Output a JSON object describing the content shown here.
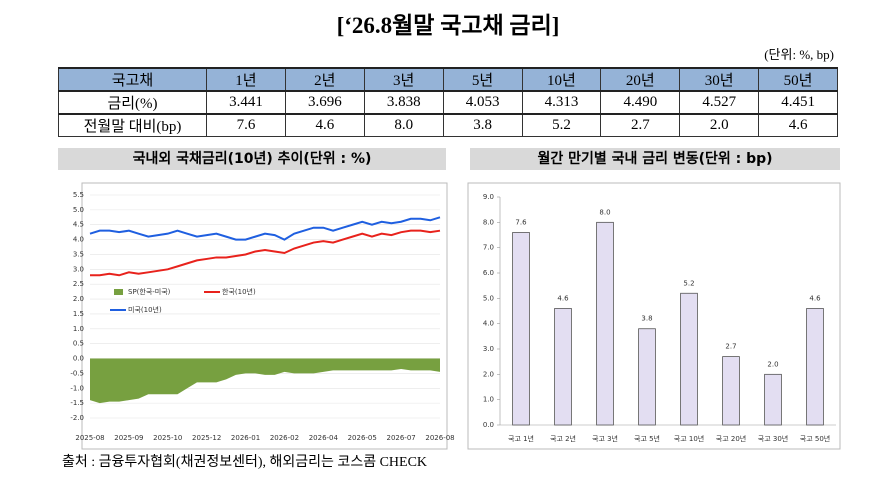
{
  "title": "[‘26.8월말 국고채 금리]",
  "unit": "(단위: %, bp)",
  "table": {
    "header": [
      "국고채",
      "1년",
      "2년",
      "3년",
      "5년",
      "10년",
      "20년",
      "30년",
      "50년"
    ],
    "rows": [
      [
        "금리(%)",
        "3.441",
        "3.696",
        "3.838",
        "4.053",
        "4.313",
        "4.490",
        "4.527",
        "4.451"
      ],
      [
        "전월말 대비(bp)",
        "7.6",
        "4.6",
        "8.0",
        "3.8",
        "5.2",
        "2.7",
        "2.0",
        "4.6"
      ]
    ]
  },
  "chart_data": [
    {
      "type": "line",
      "title": "국내외 국채금리(10년) 추이(단위 : %)",
      "categories": [
        "2025-08",
        null,
        null,
        null,
        "2025-09",
        null,
        null,
        null,
        "2025-10",
        null,
        null,
        null,
        "2025-12",
        null,
        null,
        null,
        "2026-01",
        null,
        null,
        null,
        "2026-02",
        null,
        null,
        null,
        "2026-04",
        null,
        null,
        null,
        "2026-05",
        null,
        null,
        null,
        "2026-07",
        null,
        null,
        null,
        "2026-08"
      ],
      "series": [
        {
          "name": "SP(한국-미국)",
          "color": "#77a040",
          "kind": "area",
          "values": [
            -1.4,
            -1.5,
            -1.45,
            -1.45,
            -1.4,
            -1.35,
            -1.2,
            -1.2,
            -1.2,
            -1.2,
            -1.0,
            -0.8,
            -0.8,
            -0.8,
            -0.7,
            -0.55,
            -0.5,
            -0.5,
            -0.55,
            -0.55,
            -0.45,
            -0.5,
            -0.5,
            -0.5,
            -0.45,
            -0.4,
            -0.4,
            -0.4,
            -0.4,
            -0.4,
            -0.4,
            -0.4,
            -0.35,
            -0.4,
            -0.4,
            -0.4,
            -0.45
          ]
        },
        {
          "name": "한국(10년)",
          "color": "#e8221c",
          "kind": "line",
          "values": [
            2.8,
            2.8,
            2.85,
            2.8,
            2.9,
            2.85,
            2.9,
            2.95,
            3.0,
            3.1,
            3.2,
            3.3,
            3.35,
            3.4,
            3.4,
            3.45,
            3.5,
            3.6,
            3.65,
            3.6,
            3.55,
            3.7,
            3.8,
            3.9,
            3.95,
            3.9,
            4.0,
            4.1,
            4.2,
            4.1,
            4.2,
            4.15,
            4.25,
            4.3,
            4.3,
            4.25,
            4.3
          ]
        },
        {
          "name": "미국(10년)",
          "color": "#1f5fe0",
          "kind": "line",
          "values": [
            4.2,
            4.3,
            4.3,
            4.25,
            4.3,
            4.2,
            4.1,
            4.15,
            4.2,
            4.3,
            4.2,
            4.1,
            4.15,
            4.2,
            4.1,
            4.0,
            4.0,
            4.1,
            4.2,
            4.15,
            4.0,
            4.2,
            4.3,
            4.4,
            4.4,
            4.3,
            4.4,
            4.5,
            4.6,
            4.5,
            4.6,
            4.55,
            4.6,
            4.7,
            4.7,
            4.65,
            4.75
          ]
        }
      ],
      "ylim": [
        -2,
        5.5
      ],
      "yticks": [
        {
          "value": -2,
          "label": "-2.0"
        },
        -1.5,
        {
          "value": -1,
          "label": "-1.0"
        },
        -0.5,
        {
          "value": 0,
          "label": "0.0"
        },
        0.5,
        {
          "value": 1,
          "label": "1.0"
        },
        1.5,
        {
          "value": 2,
          "label": "2.0"
        },
        2.5,
        {
          "value": 3,
          "label": "3.0"
        },
        3.5,
        {
          "value": 4,
          "label": "4.0"
        },
        4.5,
        {
          "value": 5,
          "label": "5.0"
        },
        5.5
      ],
      "grid": true
    },
    {
      "type": "bar",
      "title": "월간 만기별 국내 금리 변동(단위 : bp)",
      "categories": [
        "국고 1년",
        "국고 2년",
        "국고 3년",
        "국고 5년",
        "국고 10년",
        "국고 20년",
        "국고 30년",
        "국고 50년"
      ],
      "values": [
        7.6,
        4.6,
        8.0,
        3.8,
        5.2,
        2.7,
        2.0,
        4.6
      ],
      "value_labels": [
        "7.6",
        "4.6",
        "8.0",
        "3.8",
        "5.2",
        "2.7",
        "2.0",
        "4.6"
      ],
      "color": "#e3def2",
      "ylim": [
        0,
        9
      ],
      "yticks": [
        {
          "value": 0,
          "label": "0.0"
        },
        {
          "value": 1,
          "label": "1.0"
        },
        {
          "value": 2,
          "label": "2.0"
        },
        {
          "value": 3,
          "label": "3.0"
        },
        {
          "value": 4,
          "label": "4.0"
        },
        {
          "value": 5,
          "label": "5.0"
        },
        {
          "value": 6,
          "label": "6.0"
        },
        {
          "value": 7,
          "label": "7.0"
        },
        {
          "value": 8,
          "label": "8.0"
        },
        {
          "value": 9,
          "label": "9.0"
        }
      ],
      "grid": false
    }
  ],
  "source": "출처 : 금융투자협회(채권정보센터), 해외금리는 코스콤 CHECK"
}
